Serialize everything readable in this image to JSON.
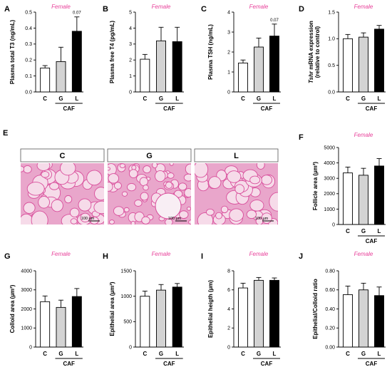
{
  "panel_letters": {
    "A": "A",
    "B": "B",
    "C": "C",
    "D": "D",
    "E": "E",
    "F": "F",
    "G": "G",
    "H": "H",
    "I": "I",
    "J": "J"
  },
  "sex_label": "Female",
  "colors": {
    "C": "#ffffff",
    "G": "#d3d3d3",
    "L": "#000000",
    "female": "#e8419a",
    "tissue_bg": "#f6dbe9",
    "tissue_line": "#d94f9c"
  },
  "micrographs": {
    "titles": [
      "C",
      "G",
      "L"
    ],
    "scale_label": "100 µm"
  },
  "chart_data": [
    {
      "id": "A",
      "type": "bar",
      "categories": [
        "C",
        "G",
        "L"
      ],
      "values": [
        0.15,
        0.19,
        0.38
      ],
      "errors": [
        0.015,
        0.09,
        0.09
      ],
      "ylabel": "Plasma total T3 (ng/mL)",
      "ylim": [
        0,
        0.5
      ],
      "yticks": [
        "0.0",
        "0.1",
        "0.2",
        "0.3",
        "0.4",
        "0.5"
      ],
      "group_label": "CAF",
      "group_categories": [
        "G",
        "L"
      ],
      "annotation": "0.07",
      "annotation_category": "L"
    },
    {
      "id": "B",
      "type": "bar",
      "categories": [
        "C",
        "G",
        "L"
      ],
      "values": [
        2.05,
        3.2,
        3.15
      ],
      "errors": [
        0.3,
        0.85,
        0.9
      ],
      "ylabel": "Plasma free T4 (pg/mL)",
      "ylim": [
        0,
        5
      ],
      "yticks": [
        "0",
        "1",
        "2",
        "3",
        "4",
        "5"
      ],
      "group_label": "CAF",
      "group_categories": [
        "G",
        "L"
      ]
    },
    {
      "id": "C",
      "type": "bar",
      "categories": [
        "C",
        "G",
        "L"
      ],
      "values": [
        1.45,
        2.25,
        2.8
      ],
      "errors": [
        0.15,
        0.45,
        0.6
      ],
      "ylabel": "Plasma TSH (ng/mL)",
      "ylim": [
        0,
        4
      ],
      "yticks": [
        "0",
        "1",
        "2",
        "3",
        "4"
      ],
      "group_label": "CAF",
      "group_categories": [
        "G",
        "L"
      ],
      "annotation": "0.07",
      "annotation_category": "L"
    },
    {
      "id": "D",
      "type": "bar",
      "categories": [
        "C",
        "G",
        "L"
      ],
      "values": [
        1.0,
        1.03,
        1.18
      ],
      "errors": [
        0.08,
        0.08,
        0.07
      ],
      "ylabel": "Tshr mRNA expression (relative to control)",
      "ylabel_italic": "Tshr",
      "ylabel_rest": " mRNA expression",
      "ylabel_line2": "(relative to control)",
      "ylim": [
        0,
        1.5
      ],
      "yticks": [
        "0.0",
        "0.5",
        "1.0",
        "1.5"
      ],
      "group_label": "CAF",
      "group_categories": [
        "G",
        "L"
      ]
    },
    {
      "id": "F",
      "type": "bar",
      "categories": [
        "C",
        "G",
        "L"
      ],
      "values": [
        3350,
        3200,
        3800
      ],
      "errors": [
        380,
        450,
        480
      ],
      "ylabel": "Follicle area (µm²)",
      "ylim": [
        0,
        5000
      ],
      "yticks": [
        "0",
        "1000",
        "2000",
        "3000",
        "4000",
        "5000"
      ],
      "group_label": "CAF",
      "group_categories": [
        "G",
        "L"
      ]
    },
    {
      "id": "G",
      "type": "bar",
      "categories": [
        "C",
        "G",
        "L"
      ],
      "values": [
        2380,
        2080,
        2650
      ],
      "errors": [
        300,
        380,
        420
      ],
      "ylabel": "Colloid area (µm²)",
      "ylim": [
        0,
        4000
      ],
      "yticks": [
        "0",
        "1000",
        "2000",
        "3000",
        "4000"
      ],
      "group_label": "CAF",
      "group_categories": [
        "G",
        "L"
      ]
    },
    {
      "id": "H",
      "type": "bar",
      "categories": [
        "C",
        "G",
        "L"
      ],
      "values": [
        1000,
        1120,
        1180
      ],
      "errors": [
        100,
        110,
        70
      ],
      "ylabel": "Epithelial area (µm²)",
      "ylim": [
        0,
        1500
      ],
      "yticks": [
        "0",
        "500",
        "1000",
        "1500"
      ],
      "group_label": "CAF",
      "group_categories": [
        "G",
        "L"
      ]
    },
    {
      "id": "I",
      "type": "bar",
      "categories": [
        "C",
        "G",
        "L"
      ],
      "values": [
        6.2,
        7.0,
        7.0
      ],
      "errors": [
        0.5,
        0.3,
        0.25
      ],
      "ylabel": "Epithelial heigth (µm)",
      "ylim": [
        0,
        8
      ],
      "yticks": [
        "0",
        "2",
        "4",
        "6",
        "8"
      ],
      "group_label": "CAF",
      "group_categories": [
        "G",
        "L"
      ]
    },
    {
      "id": "J",
      "type": "bar",
      "categories": [
        "C",
        "G",
        "L"
      ],
      "values": [
        0.55,
        0.6,
        0.54
      ],
      "errors": [
        0.09,
        0.07,
        0.09
      ],
      "ylabel": "Epithelial/Colloid ratio",
      "ylim": [
        0,
        0.8
      ],
      "yticks": [
        "0.00",
        "0.20",
        "0.40",
        "0.60",
        "0.80"
      ],
      "group_label": "CAF",
      "group_categories": [
        "G",
        "L"
      ]
    }
  ]
}
